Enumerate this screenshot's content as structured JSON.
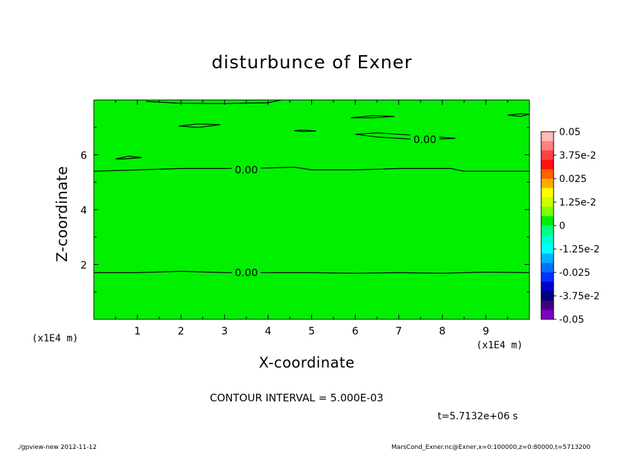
{
  "title": "disturbunce of Exner",
  "xlabel": "X-coordinate",
  "ylabel": "Z-coordinate",
  "x_unit_left": "(x1E4 m)",
  "x_unit_right": "(x1E4 m)",
  "contour_interval": "CONTOUR INTERVAL = 5.000E-03",
  "time_label": "t=5.7132e+06 s",
  "footer_left": "./gpview-new  2012-11-12",
  "footer_right": "MarsCond_Exner.nc@Exner,x=0:100000,z=0:80000,t=5713200",
  "chart_data": {
    "type": "heatmap",
    "title": "disturbunce of Exner",
    "xlabel": "X-coordinate",
    "ylabel": "Z-coordinate",
    "xlim": [
      0,
      10
    ],
    "ylim": [
      0,
      8
    ],
    "x_ticks": [
      "1",
      "2",
      "3",
      "4",
      "5",
      "6",
      "7",
      "8",
      "9"
    ],
    "y_ticks": [
      "2",
      "4",
      "6"
    ],
    "fill_color": "#00f000",
    "contour_labels": [
      {
        "text": "0.00",
        "x": 3.5,
        "y": 5.45
      },
      {
        "text": "0.00",
        "x": 3.5,
        "y": 1.7
      },
      {
        "text": "0.00",
        "x": 7.6,
        "y": 6.55
      }
    ],
    "contours": [
      [
        [
          0,
          5.4
        ],
        [
          1,
          5.45
        ],
        [
          2,
          5.5
        ],
        [
          3,
          5.5
        ],
        [
          4,
          5.52
        ],
        [
          4.6,
          5.55
        ],
        [
          5,
          5.45
        ],
        [
          6,
          5.45
        ],
        [
          7,
          5.5
        ],
        [
          8.2,
          5.5
        ],
        [
          8.5,
          5.4
        ],
        [
          10,
          5.4
        ]
      ],
      [
        [
          0,
          1.7
        ],
        [
          1,
          1.7
        ],
        [
          2,
          1.75
        ],
        [
          3,
          1.7
        ],
        [
          4,
          1.7
        ],
        [
          5,
          1.7
        ],
        [
          6,
          1.68
        ],
        [
          7,
          1.7
        ],
        [
          8,
          1.68
        ],
        [
          9,
          1.72
        ],
        [
          10,
          1.7
        ]
      ],
      [
        [
          1.2,
          7.95
        ],
        [
          2,
          7.88
        ],
        [
          3,
          7.87
        ],
        [
          4,
          7.9
        ],
        [
          4.3,
          8.0
        ]
      ],
      [
        [
          0.5,
          5.85
        ],
        [
          0.8,
          5.95
        ],
        [
          1.1,
          5.9
        ],
        [
          0.7,
          5.85
        ],
        [
          0.5,
          5.85
        ]
      ],
      [
        [
          1.95,
          7.05
        ],
        [
          2.4,
          7.13
        ],
        [
          2.9,
          7.1
        ],
        [
          2.4,
          7.0
        ],
        [
          1.95,
          7.05
        ]
      ],
      [
        [
          4.6,
          6.88
        ],
        [
          4.8,
          6.9
        ],
        [
          5.1,
          6.87
        ],
        [
          4.8,
          6.85
        ],
        [
          4.6,
          6.88
        ]
      ],
      [
        [
          5.9,
          7.35
        ],
        [
          6.4,
          7.43
        ],
        [
          6.9,
          7.4
        ],
        [
          6.4,
          7.35
        ],
        [
          5.9,
          7.35
        ]
      ],
      [
        [
          6.0,
          6.75
        ],
        [
          6.5,
          6.8
        ],
        [
          7.5,
          6.7
        ],
        [
          8.3,
          6.6
        ],
        [
          7.5,
          6.55
        ],
        [
          6.5,
          6.65
        ],
        [
          6.0,
          6.75
        ]
      ],
      [
        [
          9.5,
          7.45
        ],
        [
          9.8,
          7.5
        ],
        [
          10,
          7.48
        ],
        [
          9.8,
          7.4
        ],
        [
          9.5,
          7.45
        ]
      ]
    ],
    "colorbar": {
      "labels": [
        "0.05",
        "3.75e-2",
        "0.025",
        "1.25e-2",
        "0",
        "-1.25e-2",
        "-0.025",
        "-3.75e-2",
        "-0.05"
      ],
      "colors_top_to_bottom": [
        "#ffbaba",
        "#ff8080",
        "#ff4040",
        "#ff1010",
        "#ff6000",
        "#ffaa00",
        "#ffff00",
        "#ccff00",
        "#80ff00",
        "#00f000",
        "#00ff80",
        "#00ffd0",
        "#00ffff",
        "#00b0ff",
        "#0070ff",
        "#0030ff",
        "#0000cc",
        "#000080",
        "#400080",
        "#8000c0"
      ]
    }
  }
}
